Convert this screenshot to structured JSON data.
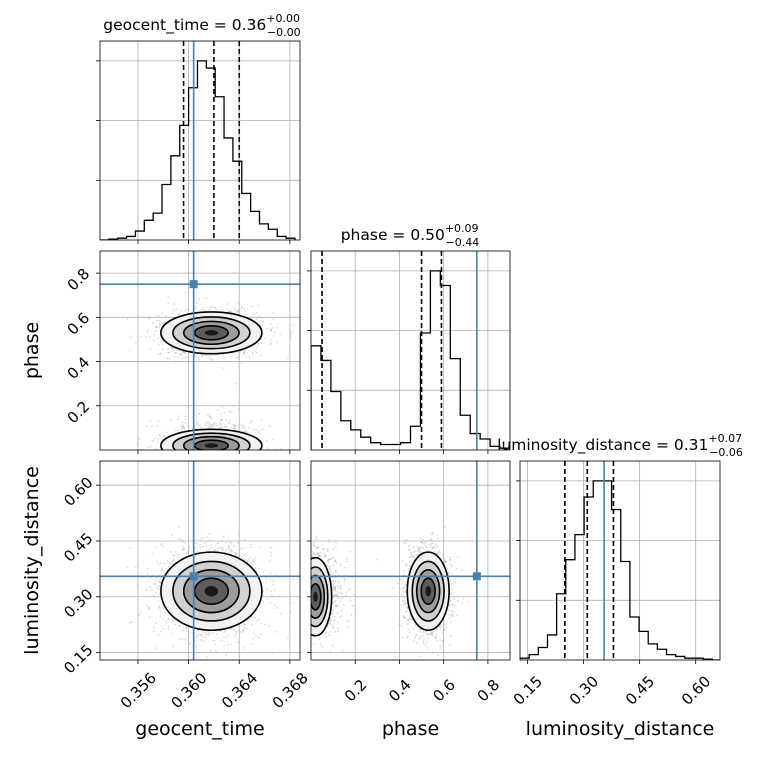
{
  "chart_data": {
    "type": "corner",
    "parameters": [
      {
        "name": "geocent_time",
        "axis_label": "geocent_time",
        "title": {
          "base": "geocent_time = 0.36",
          "sup": "+0.00",
          "sub": "−0.00"
        },
        "range": [
          0.353,
          0.3688
        ],
        "ticks": [
          {
            "value": 0.356,
            "label": "0.356"
          },
          {
            "value": 0.36,
            "label": "0.360"
          },
          {
            "value": 0.364,
            "label": "0.364"
          },
          {
            "value": 0.368,
            "label": "0.368"
          }
        ],
        "truth": 0.3604,
        "quantiles": [
          0.3596,
          0.362,
          0.364
        ],
        "hist": {
          "edges_start": 0.353,
          "bin_width": 0.0007,
          "values": [
            0.0,
            0.005,
            0.01,
            0.02,
            0.05,
            0.11,
            0.15,
            0.31,
            0.47,
            0.64,
            0.85,
            1.0,
            0.96,
            0.8,
            0.57,
            0.44,
            0.26,
            0.16,
            0.09,
            0.06,
            0.02,
            0.01
          ]
        }
      },
      {
        "name": "phase",
        "axis_label": "phase",
        "title": {
          "base": "phase = 0.50",
          "sup": "+0.09",
          "sub": "−0.44"
        },
        "range": [
          0.0,
          0.9
        ],
        "ticks": [
          {
            "value": 0.2,
            "label": "0.2"
          },
          {
            "value": 0.4,
            "label": "0.4"
          },
          {
            "value": 0.6,
            "label": "0.6"
          },
          {
            "value": 0.8,
            "label": "0.8"
          }
        ],
        "truth": 0.75,
        "quantiles": [
          0.05,
          0.5,
          0.59
        ],
        "hist": {
          "edges_start": 0.0,
          "bin_width": 0.045,
          "values": [
            0.57,
            0.49,
            0.32,
            0.16,
            0.11,
            0.07,
            0.04,
            0.03,
            0.03,
            0.04,
            0.13,
            0.64,
            0.98,
            0.9,
            0.5,
            0.19,
            0.09,
            0.06,
            0.02,
            0.01
          ]
        }
      },
      {
        "name": "luminosity_distance",
        "axis_label": "luminosity_distance",
        "title": {
          "base": "luminosity_distance = 0.31",
          "sup": "+0.07",
          "sub": "−0.06"
        },
        "range": [
          0.13,
          0.665
        ],
        "ticks": [
          {
            "value": 0.15,
            "label": "0.15"
          },
          {
            "value": 0.3,
            "label": "0.30"
          },
          {
            "value": 0.45,
            "label": "0.45"
          },
          {
            "value": 0.6,
            "label": "0.60"
          }
        ],
        "truth": 0.355,
        "quantiles": [
          0.25,
          0.31,
          0.38
        ],
        "hist": {
          "edges_start": 0.13,
          "bin_width": 0.0245,
          "values": [
            0.01,
            0.03,
            0.07,
            0.14,
            0.37,
            0.56,
            0.7,
            0.91,
            1.0,
            1.0,
            0.84,
            0.55,
            0.24,
            0.16,
            0.09,
            0.06,
            0.03,
            0.02,
            0.01,
            0.01,
            0.005,
            0.0
          ]
        }
      }
    ],
    "contour_levels": 4,
    "colors": {
      "truth": "#4682b4",
      "hist": "#000000",
      "grid": "#b0b0b0",
      "points": "#9a9a9a"
    }
  }
}
